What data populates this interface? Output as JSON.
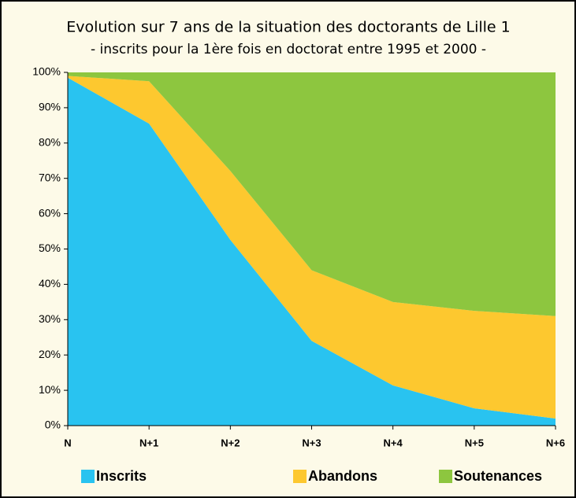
{
  "chart_data": {
    "type": "area",
    "stacked": true,
    "title": "Evolution sur 7 ans de la situation des doctorants de Lille 1",
    "subtitle": "- inscrits pour la 1ère fois en doctorat entre 1995 et 2000 -",
    "categories": [
      "N",
      "N+1",
      "N+2",
      "N+3",
      "N+4",
      "N+5",
      "N+6"
    ],
    "series": [
      {
        "name": "Inscrits",
        "color": "#29c3f0",
        "values": [
          98.5,
          85.5,
          52.6,
          24,
          11.4,
          4.9,
          2
        ]
      },
      {
        "name": "Abandons",
        "color": "#fdc82f",
        "values": [
          0.5,
          12,
          19.5,
          20,
          23.6,
          27.6,
          29
        ]
      },
      {
        "name": "Soutenances",
        "color": "#8dc63f",
        "values": [
          1,
          2.5,
          27.9,
          56,
          65,
          67.5,
          69
        ]
      }
    ],
    "ylim": [
      0,
      100
    ],
    "yticks": [
      {
        "value": 0,
        "label": "0%"
      },
      {
        "value": 10,
        "label": "10%"
      },
      {
        "value": 20,
        "label": "20%"
      },
      {
        "value": 30,
        "label": "30%"
      },
      {
        "value": 40,
        "label": "40%"
      },
      {
        "value": 50,
        "label": "50%"
      },
      {
        "value": 60,
        "label": "60%"
      },
      {
        "value": 70,
        "label": "70%"
      },
      {
        "value": 80,
        "label": "80%"
      },
      {
        "value": 90,
        "label": "90%"
      },
      {
        "value": 100,
        "label": "100%"
      }
    ],
    "legend": "bottom"
  }
}
